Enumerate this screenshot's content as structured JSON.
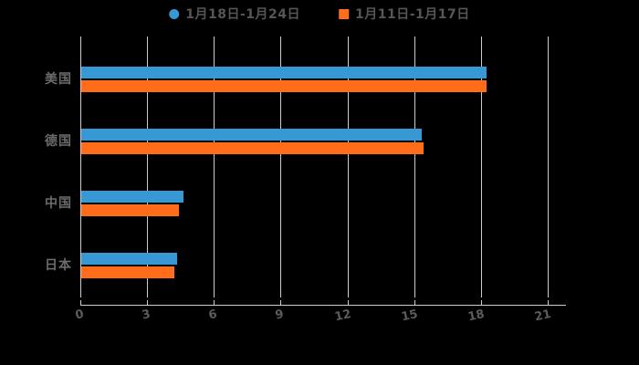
{
  "chart_data": {
    "type": "bar",
    "orientation": "horizontal",
    "title": "",
    "xlabel": "",
    "ylabel": "",
    "categories": [
      "美国",
      "德国",
      "中国",
      "日本"
    ],
    "series": [
      {
        "name": "1月18日-1月24日",
        "color": "#3798d4",
        "marker": "circle",
        "values": [
          18.2,
          15.3,
          4.6,
          4.3
        ]
      },
      {
        "name": "1月11日-1月17日",
        "color": "#ff6d1a",
        "marker": "square",
        "values": [
          18.2,
          15.4,
          4.4,
          4.2
        ]
      }
    ],
    "xlim": [
      0,
      21
    ],
    "xticks": [
      0,
      3,
      6,
      9,
      12,
      15,
      18,
      21
    ],
    "grid": true,
    "legend_position": "top",
    "background_color": "#000000",
    "axis_color": "#cdcdcd",
    "tick_text_color": "#5c5c5c",
    "category_text_color": "#6b6b6b"
  }
}
